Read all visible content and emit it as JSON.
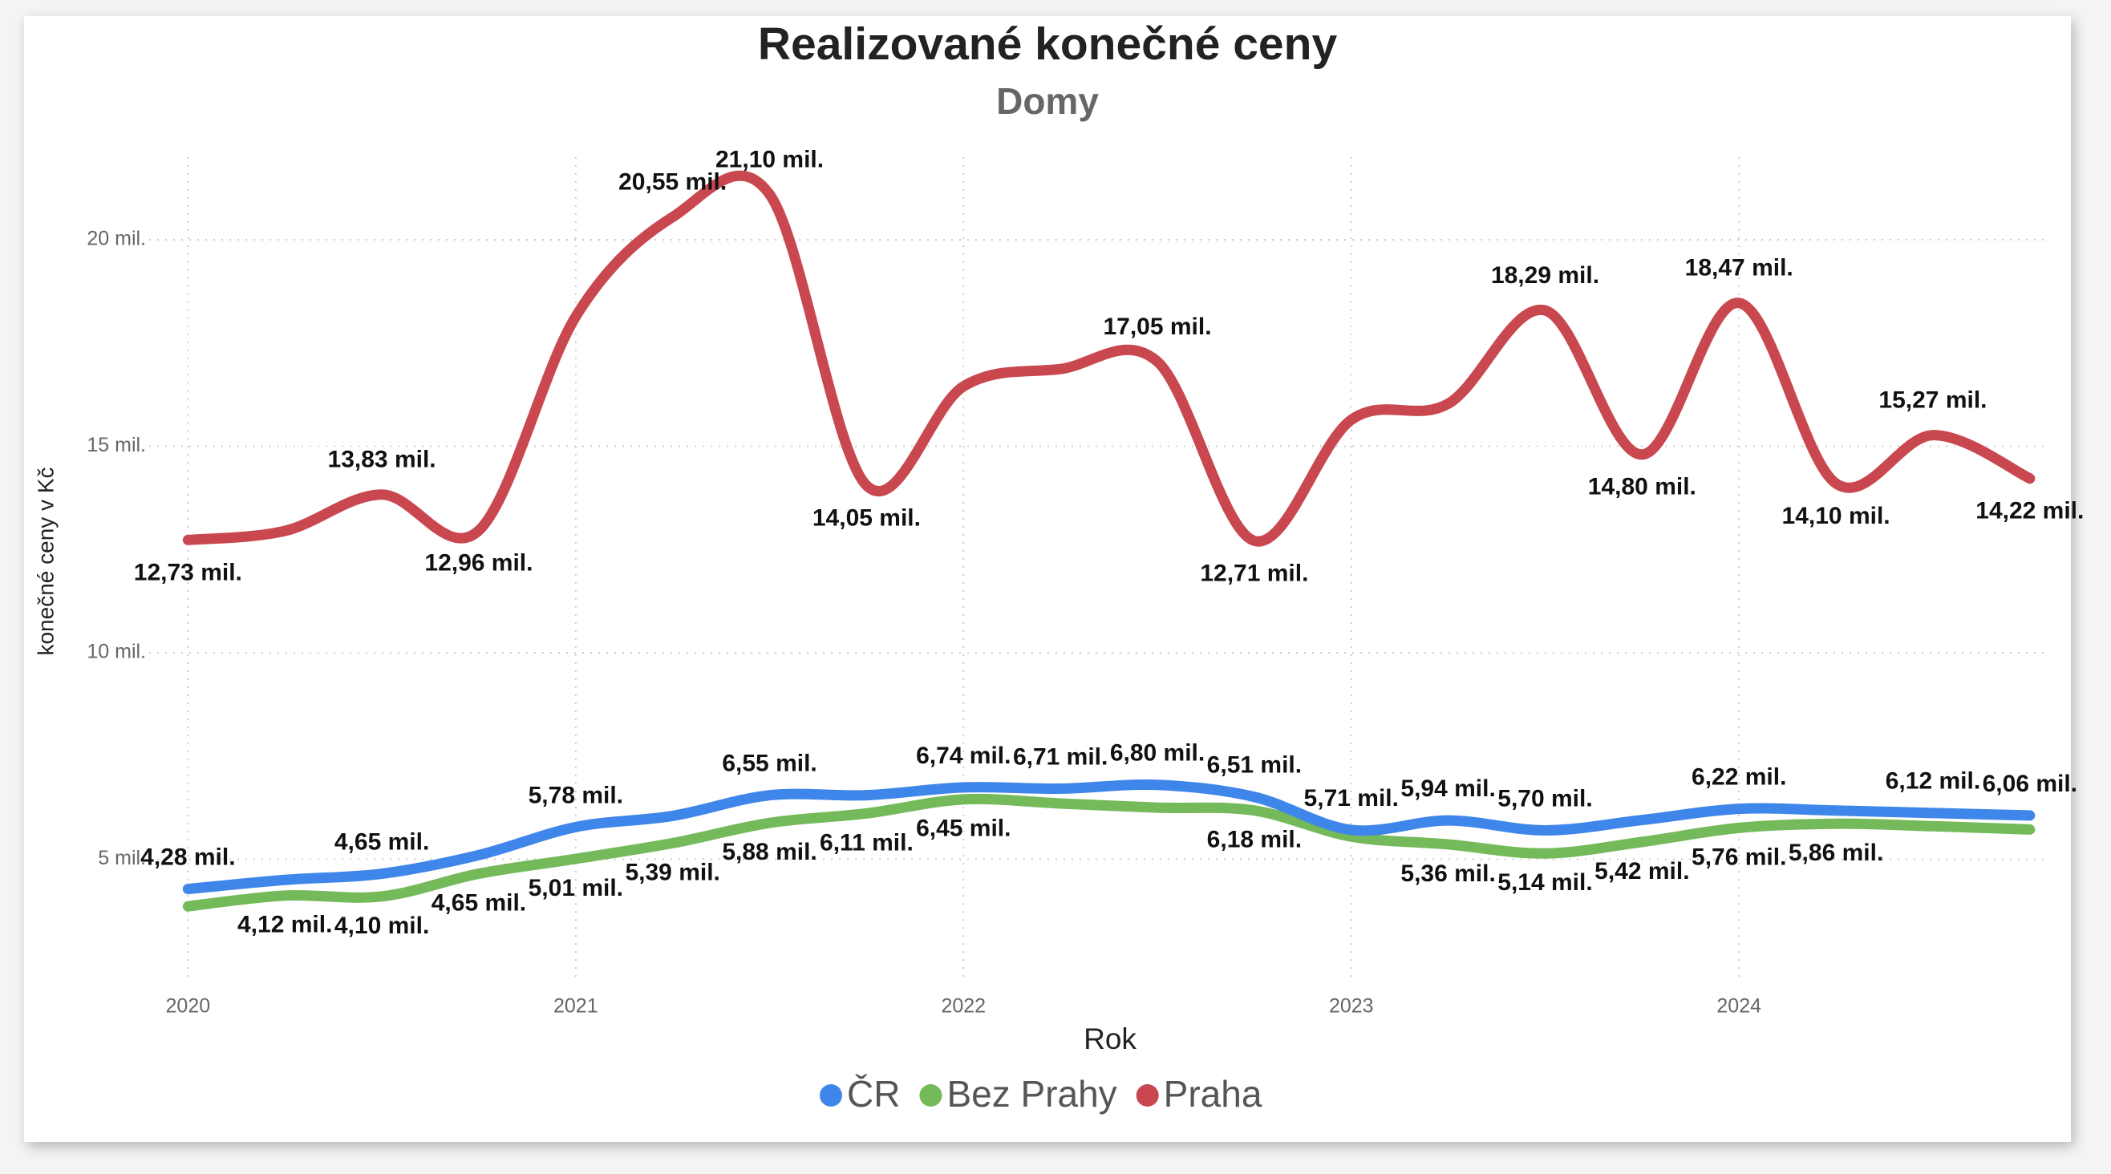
{
  "chart_data": {
    "type": "line",
    "title": "Realizované konečné ceny",
    "subtitle": "Domy",
    "x_label": "Rok",
    "y_label": "konečné ceny v Kč",
    "x": [
      2020,
      2020.25,
      2020.5,
      2020.75,
      2021,
      2021.25,
      2021.5,
      2021.75,
      2022,
      2022.25,
      2022.5,
      2022.75,
      2023,
      2023.25,
      2023.5,
      2023.75,
      2024,
      2024.25,
      2024.5,
      2024.75
    ],
    "xlim": [
      2019.9,
      2024.8
    ],
    "xticks": [
      2020,
      2021,
      2022,
      2023,
      2024
    ],
    "ylim": [
      2,
      22
    ],
    "yticks": [
      {
        "value": 5,
        "label": "5 mil."
      },
      {
        "value": 10,
        "label": "10 mil."
      },
      {
        "value": 15,
        "label": "15 mil."
      },
      {
        "value": 20,
        "label": "20 mil."
      }
    ],
    "grid": true,
    "legend": "bottom",
    "series": [
      {
        "name": "ČR",
        "color": "#3f86ea",
        "values": [
          4.28,
          4.5,
          4.65,
          5.1,
          5.78,
          6.05,
          6.55,
          6.55,
          6.74,
          6.71,
          6.8,
          6.51,
          5.71,
          5.94,
          5.7,
          5.95,
          6.22,
          6.18,
          6.12,
          6.06
        ],
        "value_labels": [
          "4,28 mil.",
          null,
          "4,65 mil.",
          null,
          "5,78 mil.",
          null,
          "6,55 mil.",
          null,
          "6,74 mil.",
          "6,71 mil.",
          "6,80 mil.",
          "6,51 mil.",
          "5,71 mil.",
          "5,94 mil.",
          "5,70 mil.",
          null,
          "6,22 mil.",
          null,
          "6,12 mil.",
          "6,06 mil."
        ]
      },
      {
        "name": "Bez Prahy",
        "color": "#74b95a",
        "values": [
          3.86,
          4.12,
          4.1,
          4.65,
          5.01,
          5.39,
          5.88,
          6.11,
          6.45,
          6.35,
          6.25,
          6.18,
          5.55,
          5.36,
          5.14,
          5.42,
          5.76,
          5.86,
          5.8,
          5.72
        ],
        "value_labels": [
          null,
          "4,12 mil.",
          "4,10 mil.",
          "4,65 mil.",
          "5,01 mil.",
          "5,39 mil.",
          "5,88 mil.",
          "6,11 mil.",
          "6,45 mil.",
          null,
          null,
          "6,18 mil.",
          null,
          "5,36 mil.",
          "5,14 mil.",
          "5,42 mil.",
          "5,76 mil.",
          "5,86 mil.",
          null,
          null
        ]
      },
      {
        "name": "Praha",
        "color": "#c9474f",
        "values": [
          12.73,
          12.95,
          13.83,
          12.96,
          18.14,
          20.55,
          21.1,
          14.05,
          16.45,
          16.87,
          17.05,
          12.71,
          15.64,
          16.03,
          18.29,
          14.8,
          18.47,
          14.1,
          15.27,
          14.22
        ],
        "value_labels": [
          "12,73 mil.",
          null,
          "13,83 mil.",
          "12,96 mil.",
          null,
          "20,55 mil.",
          "21,10 mil.",
          "14,05 mil.",
          null,
          null,
          "17,05 mil.",
          "12,71 mil.",
          null,
          null,
          "18,29 mil.",
          "14,80 mil.",
          "18,47 mil.",
          "14,10 mil.",
          "15,27 mil.",
          "14,22 mil."
        ]
      }
    ]
  }
}
